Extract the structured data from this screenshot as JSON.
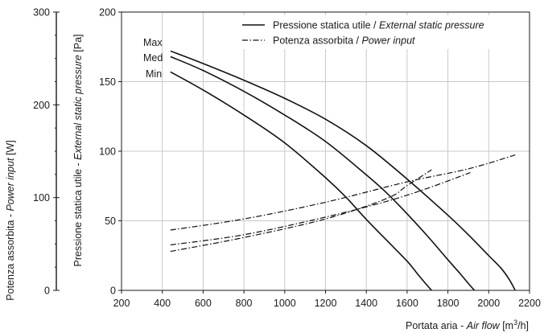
{
  "chart_data": {
    "type": "line",
    "xlabel": {
      "prefix": "Portata aria - ",
      "italic": "Air flow",
      "unit_before": " [m",
      "unit_sup": "3",
      "unit_after": "/h]"
    },
    "ylabel_left": {
      "prefix": "Pressione statica utile - ",
      "italic": "External static pressure",
      "unit": " [Pa]"
    },
    "ylabel_right": {
      "prefix": "Potenza assorbita - ",
      "italic": "Power input",
      "unit": " [W]"
    },
    "x_ticks": [
      "200",
      "400",
      "600",
      "800",
      "1000",
      "1200",
      "1400",
      "1600",
      "1800",
      "2000",
      "2200"
    ],
    "y_ticks": [
      "0",
      "50",
      "100",
      "150",
      "200"
    ],
    "y2_ticks": [
      "0",
      "100",
      "200",
      "300"
    ],
    "xlim": [
      200,
      2200
    ],
    "ylim": [
      0,
      200
    ],
    "y2lim": [
      0,
      300
    ],
    "legend": {
      "position": "top-right",
      "pressure": {
        "prefix": "Pressione statica utile / ",
        "italic": "External static pressure"
      },
      "power": {
        "prefix": "Potenza assorbita / ",
        "italic": "Power input"
      }
    },
    "speed_labels": [
      "Max",
      "Med",
      "Min"
    ],
    "pressure_series": [
      {
        "name": "Max",
        "x": [
          440,
          600,
          800,
          1000,
          1200,
          1400,
          1600,
          1800,
          1900,
          2000,
          2060,
          2100,
          2130
        ],
        "y": [
          172,
          163,
          151,
          138,
          123,
          104,
          80,
          54,
          40,
          25,
          16,
          8,
          0
        ]
      },
      {
        "name": "Med",
        "x": [
          440,
          600,
          800,
          1000,
          1200,
          1400,
          1500,
          1600,
          1700,
          1800,
          1860,
          1900,
          1930
        ],
        "y": [
          168,
          158,
          143,
          126,
          107,
          83,
          70,
          55,
          39,
          22,
          12,
          5,
          0
        ]
      },
      {
        "name": "Min",
        "x": [
          440,
          600,
          800,
          1000,
          1200,
          1300,
          1400,
          1500,
          1600,
          1650,
          1690,
          1720
        ],
        "y": [
          157,
          144,
          126,
          106,
          81,
          67,
          51,
          36,
          21,
          12,
          5,
          0
        ]
      }
    ],
    "power_series": [
      {
        "name": "Max",
        "x": [
          440,
          800,
          1200,
          1600,
          1900,
          2130
        ],
        "y": [
          65,
          77,
          95,
          117,
          131,
          146
        ]
      },
      {
        "name": "Med",
        "x": [
          440,
          800,
          1200,
          1500,
          1700,
          1910
        ],
        "y": [
          49,
          60,
          79,
          96,
          110,
          127
        ]
      },
      {
        "name": "Min",
        "x": [
          440,
          800,
          1200,
          1500,
          1600,
          1720
        ],
        "y": [
          42,
          57,
          77,
          99,
          113,
          130
        ]
      }
    ]
  }
}
